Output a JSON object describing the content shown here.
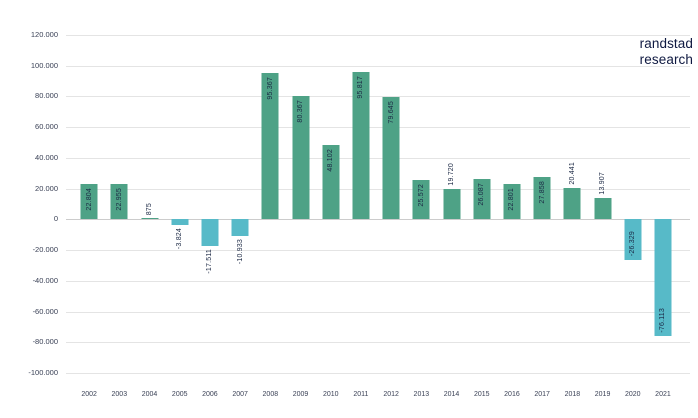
{
  "brand": {
    "line1": "randstad",
    "line2": "research",
    "color": "#0f1941"
  },
  "chart_data": {
    "type": "bar",
    "title": "",
    "xlabel": "",
    "ylabel": "",
    "categories": [
      "2002",
      "2003",
      "2004",
      "2005",
      "2006",
      "2007",
      "2008",
      "2009",
      "2010",
      "2011",
      "2012",
      "2013",
      "2014",
      "2015",
      "2016",
      "2017",
      "2018",
      "2019",
      "2020",
      "2021"
    ],
    "values": [
      22804,
      22955,
      875,
      -3824,
      -17511,
      -10933,
      95367,
      80367,
      48102,
      95817,
      79645,
      25572,
      19720,
      26087,
      22801,
      27858,
      20441,
      13907,
      -26329,
      -76113
    ],
    "labels": [
      "22.804",
      "22.955",
      "875",
      "-3.824",
      "-17.511",
      "-10.933",
      "95.367",
      "80.367",
      "48.102",
      "95.817",
      "79.645",
      "25.572",
      "19.720",
      "26.087",
      "22.801",
      "27.858",
      "20.441",
      "13.907",
      "-26.329",
      "-76.113"
    ],
    "label_placement": [
      "inside",
      "inside",
      "above",
      "below",
      "below",
      "below",
      "inside",
      "inside",
      "inside",
      "inside",
      "inside",
      "inside",
      "above",
      "inside",
      "inside",
      "inside",
      "above",
      "above",
      "inside",
      "inside"
    ],
    "ylim": [
      -100000,
      120000
    ],
    "ytick_step": 20000,
    "yticks": [
      "120.000",
      "100.000",
      "80.000",
      "60.000",
      "40.000",
      "20.000",
      "0",
      "-20.000",
      "-40.000",
      "-60.000",
      "-80.000",
      "-100.000"
    ],
    "grid": true,
    "legend": false,
    "positive_color": "#4EA286",
    "negative_color": "#57BAC8",
    "gridline_color": "#e4e4e4",
    "zero_line_color": "#cccccc"
  }
}
